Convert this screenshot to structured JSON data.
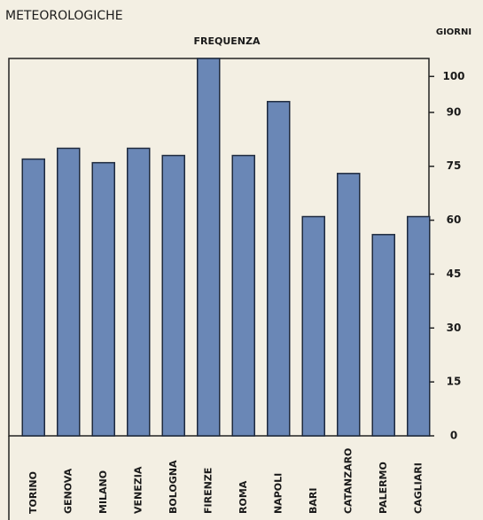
{
  "chart_data": {
    "type": "bar",
    "title": "METEOROLOGICHE",
    "subtitle": "FREQUENZA",
    "y_label": "GIORNI",
    "categories": [
      "TORINO",
      "GENOVA",
      "MILANO",
      "VENEZIA",
      "BOLOGNA",
      "FIRENZE",
      "ROMA",
      "NAPOLI",
      "BARI",
      "CATANZARO",
      "PALERMO",
      "CAGLIARI"
    ],
    "values": [
      77,
      80,
      76,
      80,
      78,
      105,
      78,
      93,
      61,
      73,
      56,
      61
    ],
    "color": "#6a87b6",
    "ylim": [
      0,
      105
    ],
    "yticks": [
      0,
      15,
      30,
      45,
      60,
      75,
      90,
      100
    ],
    "grid": false
  }
}
